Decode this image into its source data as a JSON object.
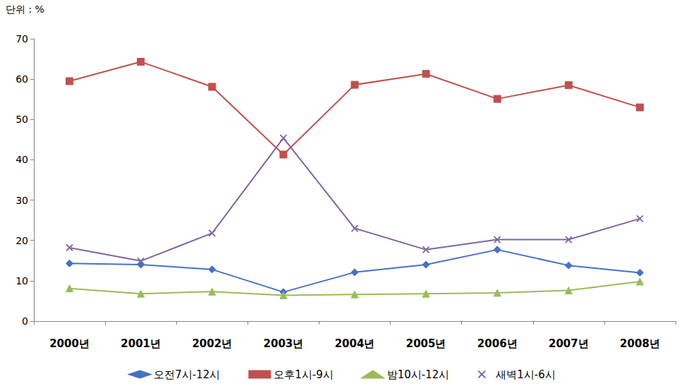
{
  "chart_data": {
    "type": "line",
    "ylabel": "단위 : %",
    "categories": [
      "2000년",
      "2001년",
      "2002년",
      "2003년",
      "2004년",
      "2005년",
      "2006년",
      "2007년",
      "2008년"
    ],
    "series": [
      {
        "name": "오전7시-12시",
        "color": "#4472c4",
        "marker": "diamond",
        "values": [
          14.3,
          14.0,
          12.8,
          7.2,
          12.1,
          14.0,
          17.7,
          13.8,
          12.0
        ]
      },
      {
        "name": "오후1시-9시",
        "color": "#c0504d",
        "marker": "square",
        "values": [
          59.5,
          64.3,
          58.1,
          41.3,
          58.6,
          61.3,
          55.1,
          58.5,
          53.0
        ]
      },
      {
        "name": "밤10시-12시",
        "color": "#9bbb59",
        "marker": "triangle",
        "values": [
          8.1,
          6.8,
          7.3,
          6.4,
          6.6,
          6.8,
          7.0,
          7.6,
          9.8
        ]
      },
      {
        "name": "새벽1시-6시",
        "color": "#8064a2",
        "marker": "x",
        "values": [
          18.2,
          14.9,
          21.8,
          45.4,
          23.0,
          17.7,
          20.2,
          20.2,
          25.4
        ]
      }
    ],
    "ylim": [
      0,
      70
    ],
    "yticks": [
      0,
      10,
      20,
      30,
      40,
      50,
      60,
      70
    ],
    "grid": false,
    "legend": "bottom"
  }
}
